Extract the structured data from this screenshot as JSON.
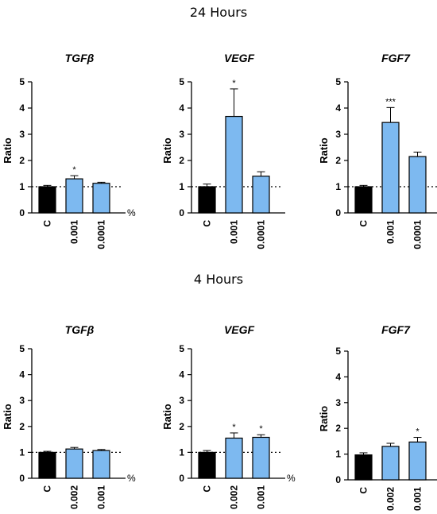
{
  "sections": [
    {
      "title": "24 Hours",
      "panels": [
        0,
        1,
        2
      ]
    },
    {
      "title": "4 Hours",
      "panels": [
        3,
        4,
        5
      ]
    }
  ],
  "colors": {
    "control": "#000000",
    "treatment": "#7db9f0",
    "reference_line": "#000000"
  },
  "chart_data": [
    {
      "type": "bar",
      "section": "24 Hours",
      "title": "TGFβ",
      "ylabel": "Ratio",
      "unit": "%",
      "categories": [
        "C",
        "0.001",
        "0.0001"
      ],
      "values": [
        1.0,
        1.3,
        1.13
      ],
      "errors": [
        0.05,
        0.12,
        0.04
      ],
      "significance": [
        "",
        "*",
        ""
      ],
      "ylim": [
        0,
        5
      ],
      "yticks": [
        0,
        1,
        2,
        3,
        4,
        5
      ],
      "reference_line": 1
    },
    {
      "type": "bar",
      "section": "24 Hours",
      "title": "VEGF",
      "ylabel": "Ratio",
      "unit": "",
      "categories": [
        "C",
        "0.001",
        "0.0001"
      ],
      "values": [
        1.0,
        3.68,
        1.4
      ],
      "errors": [
        0.1,
        1.05,
        0.17
      ],
      "significance": [
        "",
        "*",
        ""
      ],
      "ylim": [
        0,
        5
      ],
      "yticks": [
        0,
        1,
        2,
        3,
        4,
        5
      ],
      "reference_line": 1
    },
    {
      "type": "bar",
      "section": "24 Hours",
      "title": "FGF7",
      "ylabel": "Ratio",
      "unit": "",
      "categories": [
        "C",
        "0.001",
        "0.0001"
      ],
      "values": [
        1.0,
        3.45,
        2.15
      ],
      "errors": [
        0.05,
        0.57,
        0.17
      ],
      "significance": [
        "",
        "***",
        ""
      ],
      "ylim": [
        0,
        5
      ],
      "yticks": [
        0,
        1,
        2,
        3,
        4,
        5
      ],
      "reference_line": 1
    },
    {
      "type": "bar",
      "section": "4 Hours",
      "title": "TGFβ",
      "ylabel": "Ratio",
      "unit": "%",
      "categories": [
        "C",
        "0.002",
        "0.001"
      ],
      "values": [
        1.0,
        1.13,
        1.07
      ],
      "errors": [
        0.04,
        0.06,
        0.04
      ],
      "significance": [
        "",
        "",
        ""
      ],
      "ylim": [
        0,
        5
      ],
      "yticks": [
        0,
        1,
        2,
        3,
        4,
        5
      ],
      "reference_line": 1
    },
    {
      "type": "bar",
      "section": "4 Hours",
      "title": "VEGF",
      "ylabel": "Ratio",
      "unit": "%",
      "categories": [
        "C",
        "0.002",
        "0.001"
      ],
      "values": [
        1.0,
        1.55,
        1.58
      ],
      "errors": [
        0.07,
        0.2,
        0.1
      ],
      "significance": [
        "",
        "*",
        "*"
      ],
      "ylim": [
        0,
        5
      ],
      "yticks": [
        0,
        1,
        2,
        3,
        4,
        5
      ],
      "reference_line": 1
    },
    {
      "type": "bar",
      "section": "4 Hours",
      "title": "FGF7",
      "ylabel": "Ratio",
      "unit": "%",
      "categories": [
        "C",
        "0.002",
        "0.001"
      ],
      "values": [
        0.97,
        1.3,
        1.47
      ],
      "errors": [
        0.08,
        0.12,
        0.18
      ],
      "significance": [
        "",
        "",
        "*"
      ],
      "ylim": [
        0,
        5
      ],
      "yticks": [
        0,
        1,
        2,
        3,
        4,
        5
      ],
      "reference_line": null
    }
  ]
}
